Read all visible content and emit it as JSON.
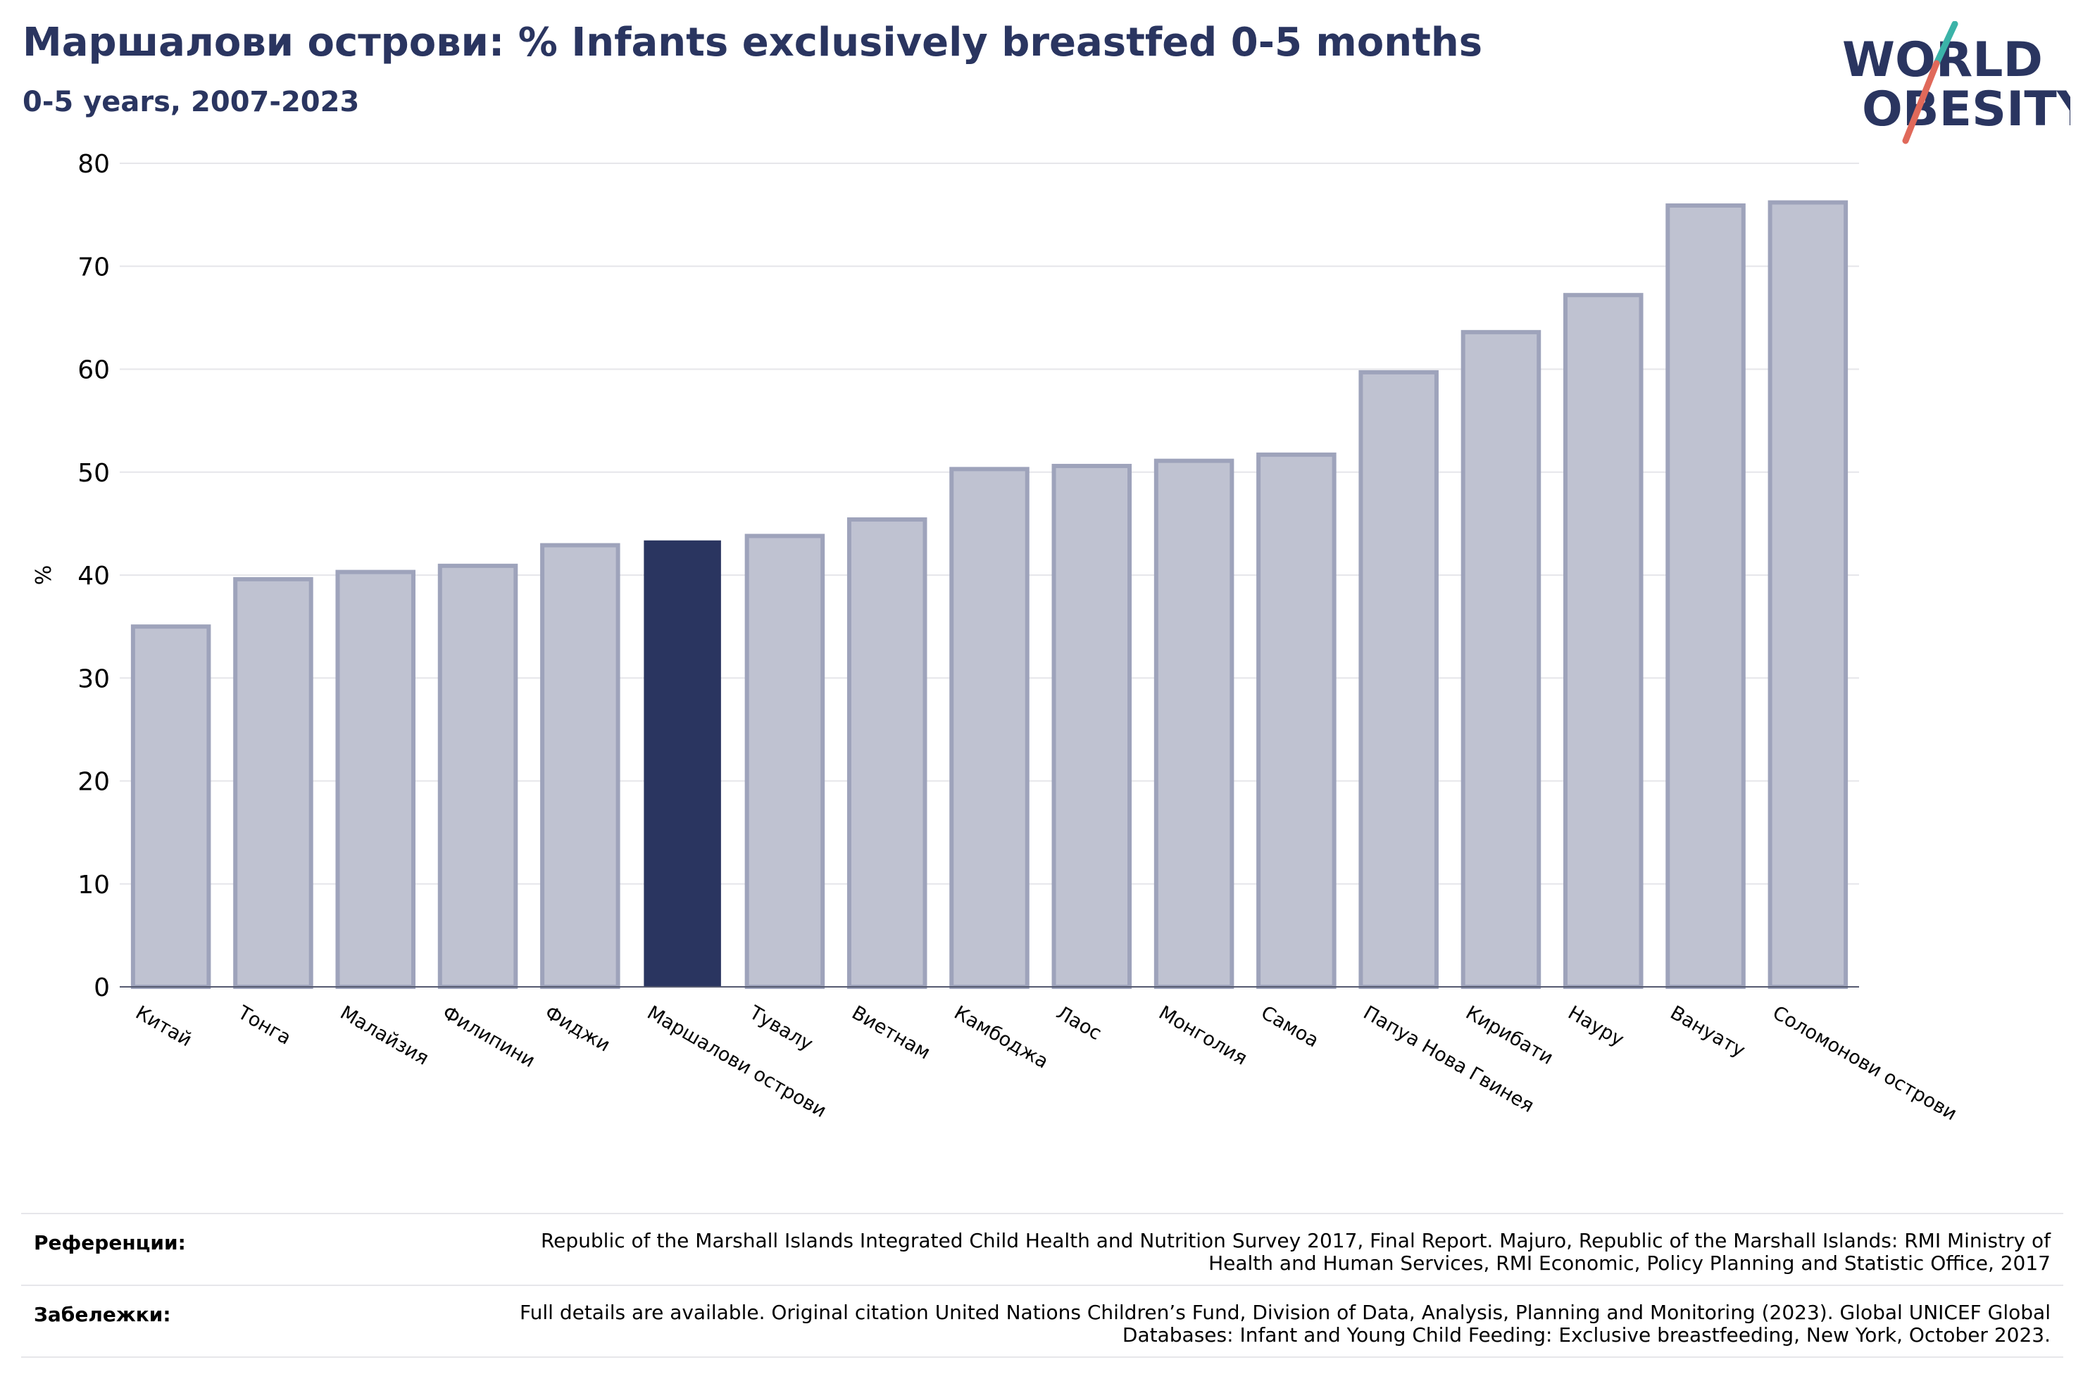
{
  "header": {
    "title": "Маршалови острови: % Infants exclusively breastfed 0-5 months",
    "subtitle": "0-5 years, 2007-2023"
  },
  "logo": {
    "line1": "WORLD",
    "line2": "OBESITY",
    "icon": "world-obesity-logo"
  },
  "colors": {
    "highlight": "#2a3560",
    "bar_fill": "#bfc2d1",
    "bar_edge": "#9ea3bb",
    "grid": "#e6e6ea",
    "accent_teal": "#3bb3a8",
    "accent_coral": "#e0695a"
  },
  "chart_data": {
    "type": "bar",
    "title": "Маршалови острови: % Infants exclusively breastfed 0-5 months",
    "subtitle": "0-5 years, 2007-2023",
    "xlabel": "",
    "ylabel": "%",
    "ylim": [
      0,
      80
    ],
    "yticks": [
      0,
      10,
      20,
      30,
      40,
      50,
      60,
      70,
      80
    ],
    "grid": true,
    "highlight": "Маршалови острови",
    "categories": [
      "Китай",
      "Тонга",
      "Малайзия",
      "Филипини",
      "Фиджи",
      "Маршалови острови",
      "Тувалу",
      "Виетнам",
      "Камбоджа",
      "Лаос",
      "Монголия",
      "Самоа",
      "Папуа Нова Гвинея",
      "Кирибати",
      "Науру",
      "Вануату",
      "Соломонови острови"
    ],
    "values": [
      35.0,
      39.6,
      40.3,
      40.9,
      42.9,
      43.3,
      43.8,
      45.4,
      50.3,
      50.6,
      51.1,
      51.7,
      59.7,
      63.6,
      67.2,
      75.9,
      76.2
    ]
  },
  "footer": {
    "references_label": "Референции:",
    "references_text": "Republic of the Marshall Islands Integrated Child Health and Nutrition Survey 2017, Final Report. Majuro, Republic of the Marshall Islands: RMI Ministry of Health and Human Services, RMI Economic, Policy Planning and Statistic Office, 2017",
    "notes_label": "Забележки:",
    "notes_text": "Full details are available. Original citation United Nations Children’s Fund, Division of Data, Analysis, Planning and Monitoring (2023). Global UNICEF Global Databases: Infant and Young Child Feeding: Exclusive breastfeeding, New York, October 2023."
  }
}
